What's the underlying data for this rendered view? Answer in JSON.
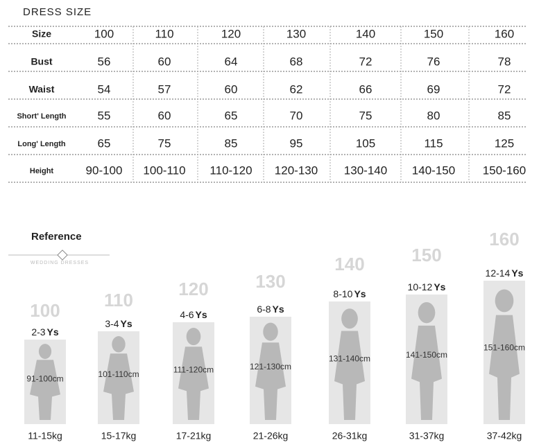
{
  "title": "DRESS SIZE",
  "table": {
    "rows": [
      [
        "Size",
        "100",
        "110",
        "120",
        "130",
        "140",
        "150",
        "160"
      ],
      [
        "Bust",
        "56",
        "60",
        "64",
        "68",
        "72",
        "76",
        "78"
      ],
      [
        "Waist",
        "54",
        "57",
        "60",
        "62",
        "66",
        "69",
        "72"
      ],
      [
        "Short' Length",
        "55",
        "60",
        "65",
        "70",
        "75",
        "80",
        "85"
      ],
      [
        "Long' Length",
        "65",
        "75",
        "85",
        "95",
        "105",
        "115",
        "125"
      ],
      [
        "Height",
        "90-100",
        "100-110",
        "110-120",
        "120-130",
        "130-140",
        "140-150",
        "150-160"
      ]
    ]
  },
  "reference": {
    "title": "Reference",
    "subtitle": "WEDDING DRESSES",
    "figures": [
      {
        "size": "100",
        "age": "2-3",
        "unit": "Ys",
        "height": "91-100cm",
        "weight": "11-15kg"
      },
      {
        "size": "110",
        "age": "3-4",
        "unit": "Ys",
        "height": "101-110cm",
        "weight": "15-17kg"
      },
      {
        "size": "120",
        "age": "4-6",
        "unit": "Ys",
        "height": "111-120cm",
        "weight": "17-21kg"
      },
      {
        "size": "130",
        "age": "6-8",
        "unit": "Ys",
        "height": "121-130cm",
        "weight": "21-26kg"
      },
      {
        "size": "140",
        "age": "8-10",
        "unit": "Ys",
        "height": "131-140cm",
        "weight": "26-31kg"
      },
      {
        "size": "150",
        "age": "10-12",
        "unit": "Ys",
        "height": "141-150cm",
        "weight": "31-37kg"
      },
      {
        "size": "160",
        "age": "12-14",
        "unit": "Ys",
        "height": "151-160cm",
        "weight": "37-42kg"
      }
    ]
  }
}
